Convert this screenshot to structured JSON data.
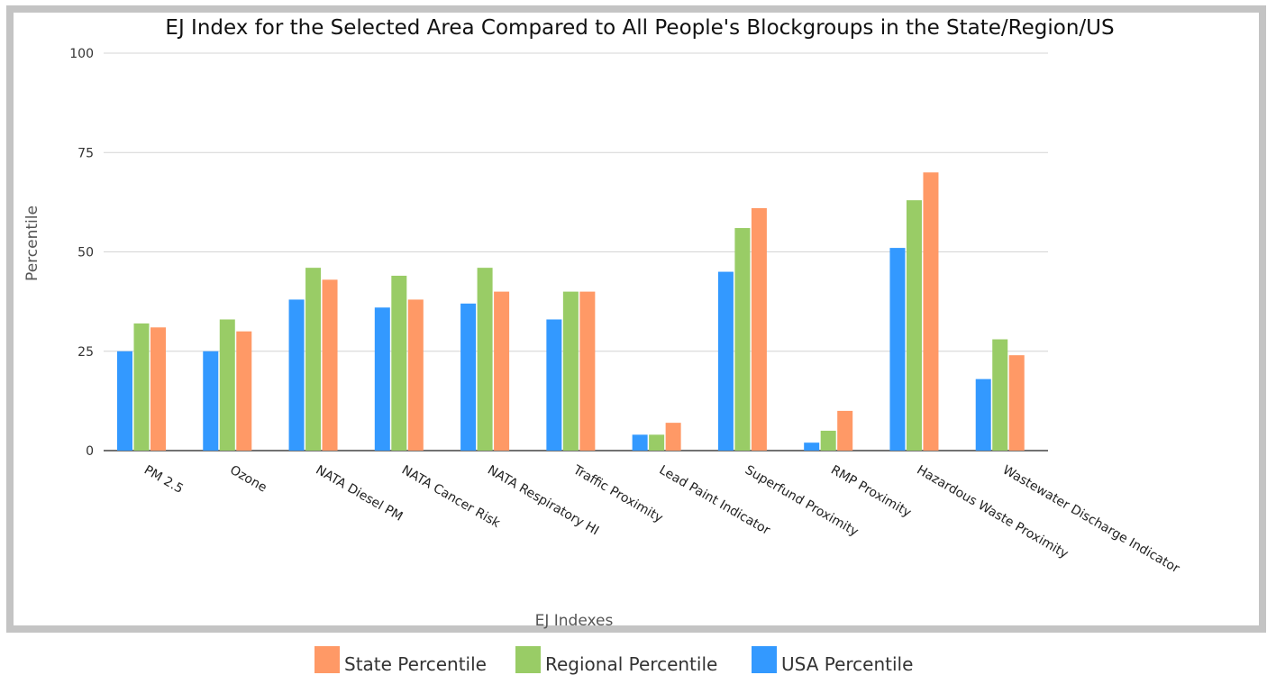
{
  "chart_data": {
    "type": "bar",
    "title": "EJ Index for the Selected Area Compared to All People's Blockgroups in the State/Region/US",
    "xlabel": "EJ Indexes",
    "ylabel": "Percentile",
    "ylim": [
      0,
      100
    ],
    "yticks": [
      0,
      25,
      50,
      75,
      100
    ],
    "grid": true,
    "legend_position": "bottom",
    "categories": [
      "PM 2.5",
      "Ozone",
      "NATA Diesel PM",
      "NATA Cancer Risk",
      "NATA Respiratory HI",
      "Traffic Proximity",
      "Lead Paint Indicator",
      "Superfund Proximity",
      "RMP Proximity",
      "Hazardous Waste Proximity",
      "Wastewater Discharge Indicator"
    ],
    "series": [
      {
        "name": "USA Percentile",
        "color": "#3399ff",
        "values": [
          25,
          25,
          38,
          36,
          37,
          33,
          4,
          45,
          2,
          51,
          18
        ]
      },
      {
        "name": "Regional Percentile",
        "color": "#99cc66",
        "values": [
          32,
          33,
          46,
          44,
          46,
          40,
          4,
          56,
          5,
          63,
          28
        ]
      },
      {
        "name": "State Percentile",
        "color": "#ff9966",
        "values": [
          31,
          30,
          43,
          38,
          40,
          40,
          7,
          61,
          10,
          70,
          24
        ]
      }
    ],
    "legend_order": [
      "State Percentile",
      "Regional Percentile",
      "USA Percentile"
    ]
  }
}
